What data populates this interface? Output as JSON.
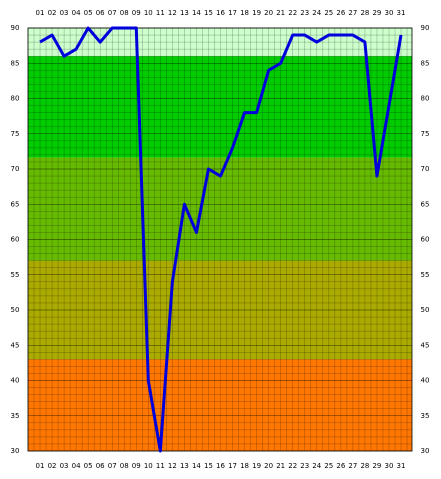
{
  "chart_data": {
    "type": "line",
    "categories": [
      "01",
      "02",
      "03",
      "04",
      "05",
      "06",
      "07",
      "08",
      "09",
      "10",
      "11",
      "12",
      "13",
      "14",
      "15",
      "16",
      "17",
      "18",
      "19",
      "20",
      "21",
      "22",
      "23",
      "24",
      "25",
      "26",
      "27",
      "28",
      "29",
      "30",
      "31"
    ],
    "series": [
      {
        "color": "#0000dd",
        "values": [
          88,
          89,
          86,
          87,
          90,
          88,
          90,
          90,
          90,
          40,
          30,
          54,
          65,
          61,
          70,
          69,
          73,
          78,
          78,
          84,
          85,
          89,
          89,
          88,
          89,
          89,
          89,
          88,
          69,
          79,
          89
        ]
      }
    ],
    "ylim": [
      30,
      90
    ],
    "yticks": [
      30,
      35,
      40,
      45,
      50,
      55,
      60,
      65,
      70,
      75,
      80,
      85,
      90
    ],
    "grid": true,
    "bands": [
      {
        "from": 86,
        "to": 90,
        "color": "#ccffcc"
      },
      {
        "from": 71.6,
        "to": 86,
        "color": "#00cc00"
      },
      {
        "from": 57,
        "to": 71.6,
        "color": "#66bb00"
      },
      {
        "from": 43,
        "to": 57,
        "color": "#aaaa00"
      },
      {
        "from": 30,
        "to": 43,
        "color": "#ff7700"
      }
    ]
  }
}
